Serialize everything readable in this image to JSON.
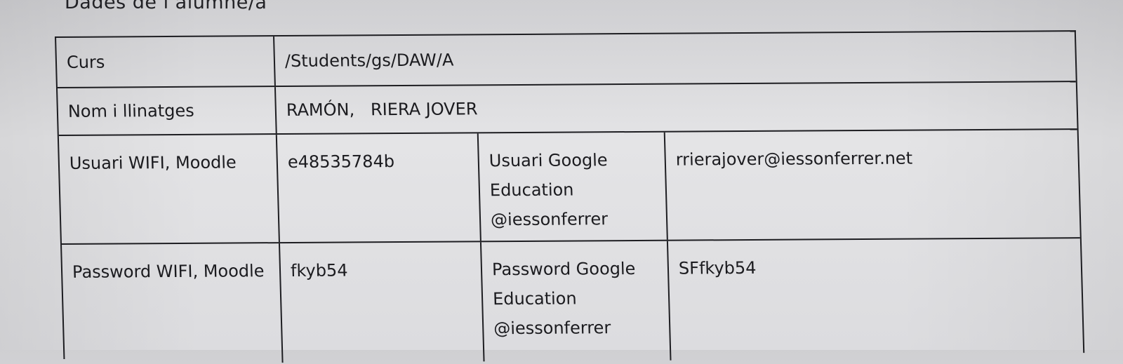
{
  "document": {
    "heading": "Dades de l’alumne/a"
  },
  "table": {
    "curs": {
      "label": "Curs",
      "value": "/Students/gs/DAW/A"
    },
    "nom": {
      "label": "Nom i llinatges",
      "value": "RAMÓN,   RIERA JOVER"
    },
    "usuari": {
      "label": "Usuari WIFI, Moodle",
      "value": "e48535784b",
      "google_label": "Usuari Google Education @iessonferrer",
      "google_value": "rrierajover@iessonferrer.net"
    },
    "password": {
      "label": "Password WIFI, Moodle",
      "value": "fkyb54",
      "google_label": "Password Google Education @iessonferrer",
      "google_value": "SFfkyb54"
    }
  }
}
